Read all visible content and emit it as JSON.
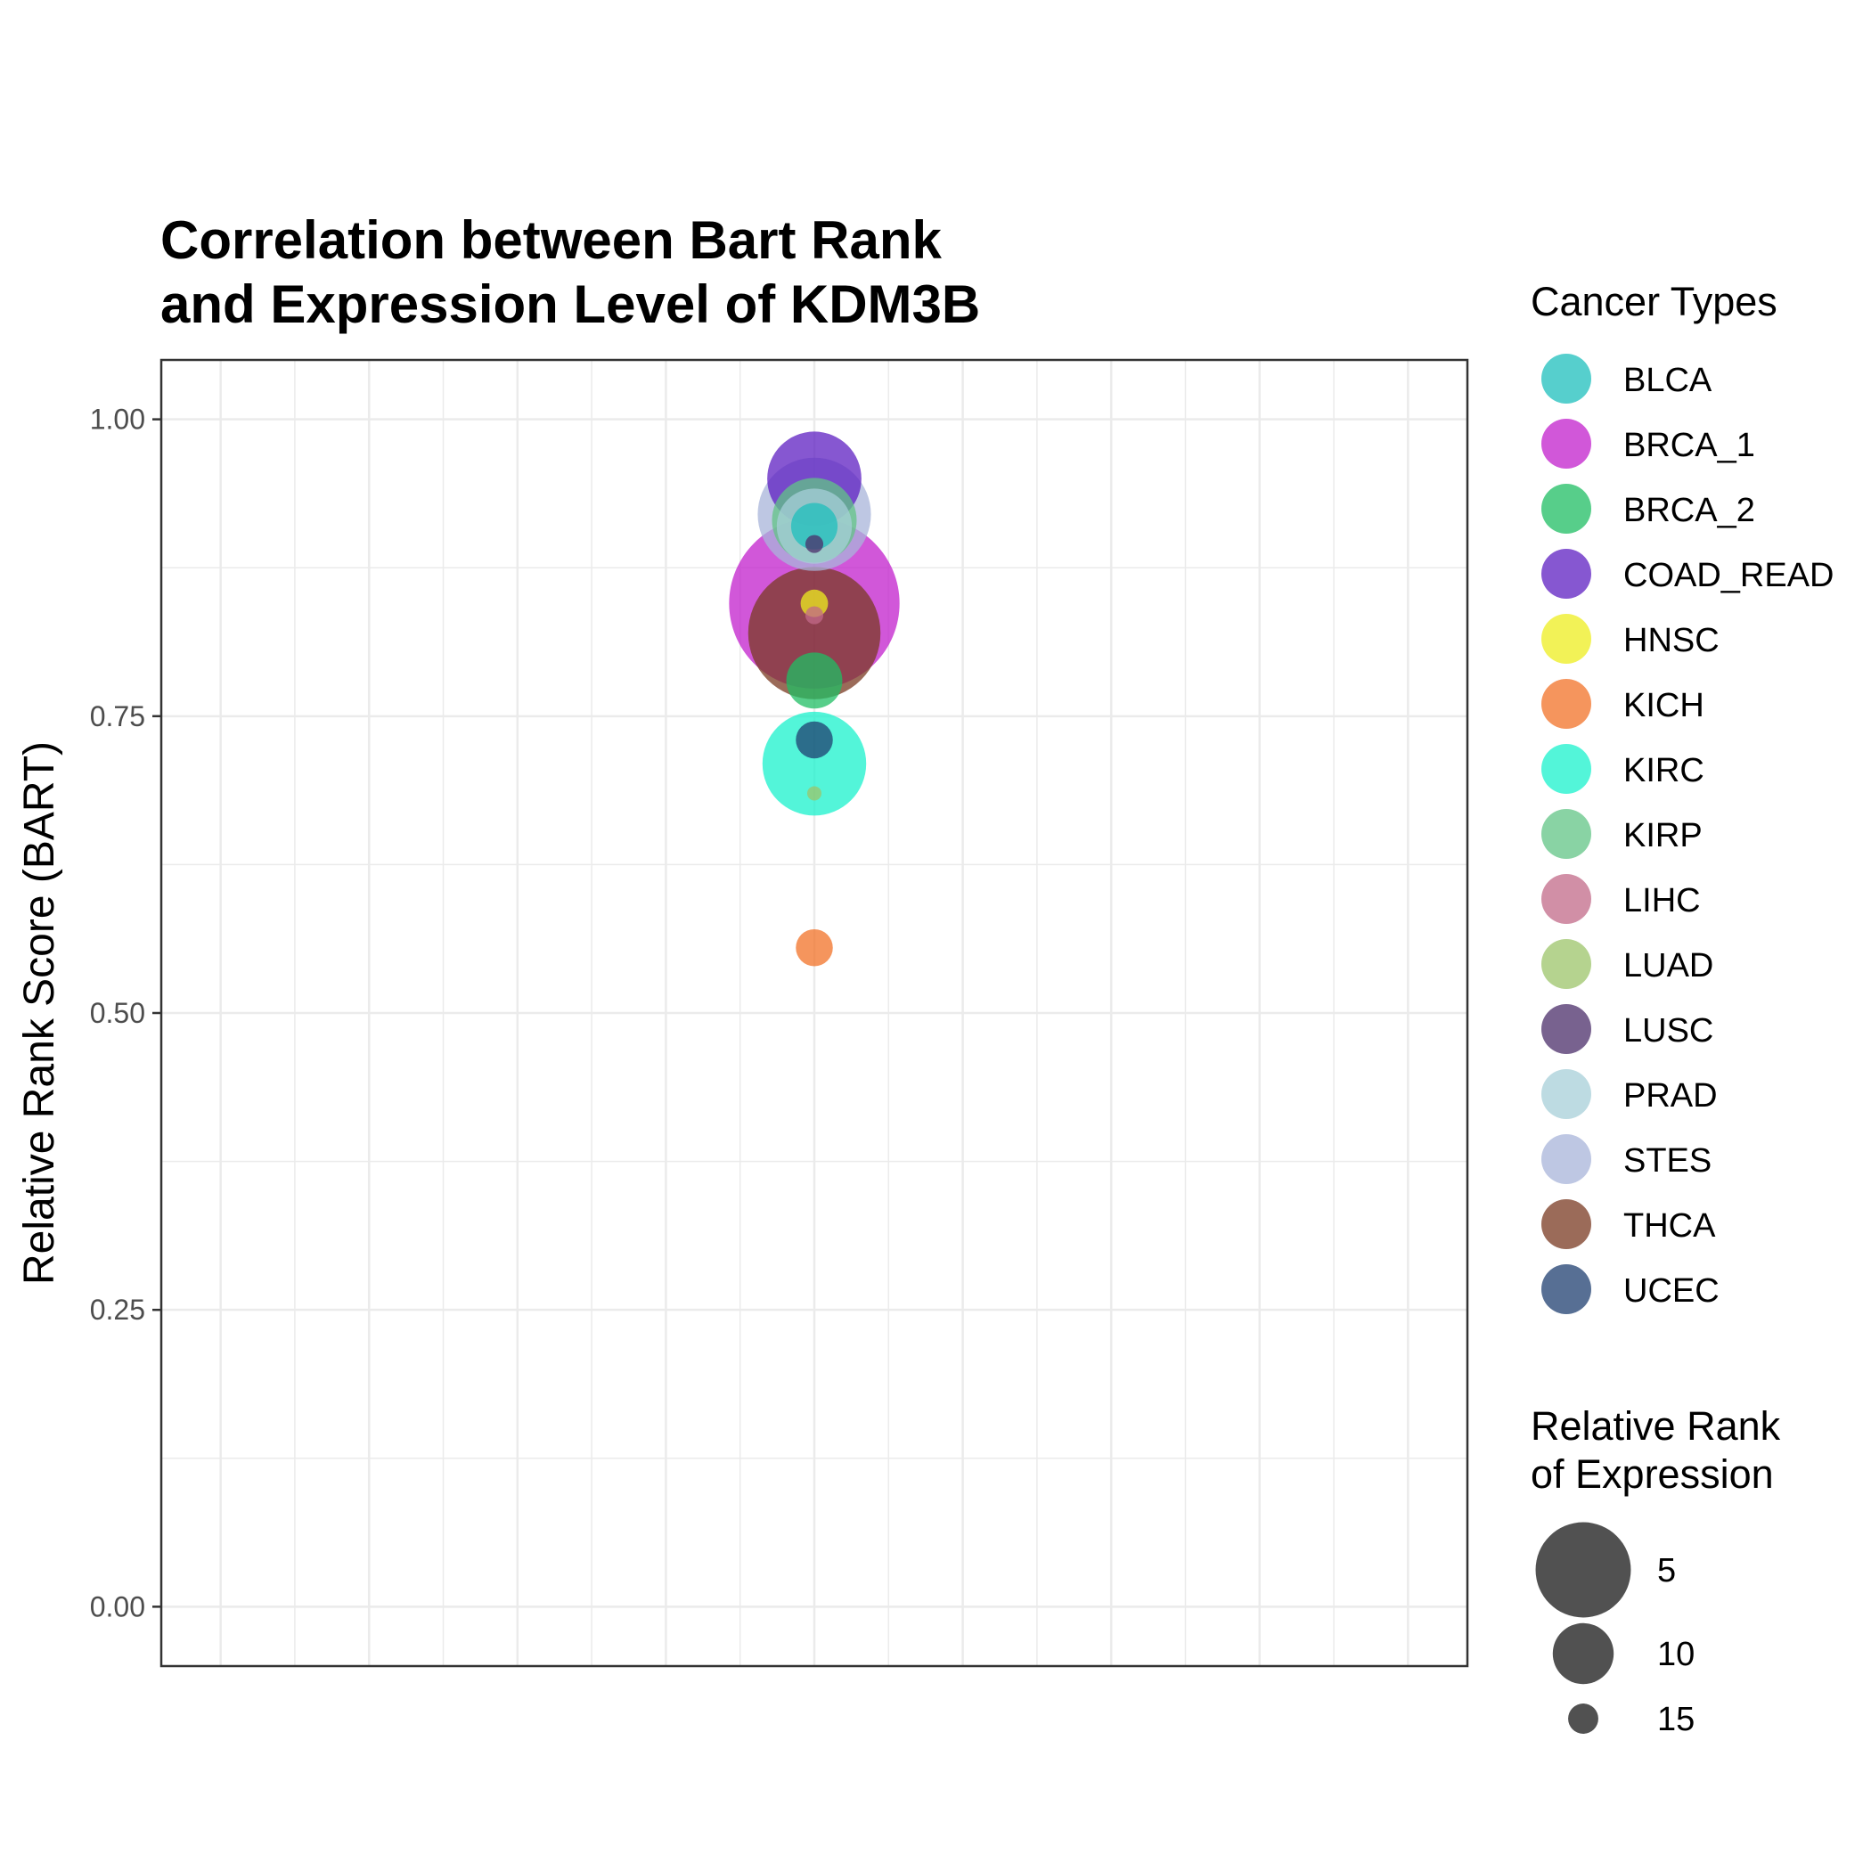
{
  "chart_data": {
    "type": "scatter",
    "title_lines": [
      "Correlation between Bart Rank",
      "and Expression Level of KDM3B"
    ],
    "xlabel": "",
    "ylabel": "Relative Rank Score (BART)",
    "ylim": [
      -0.05,
      1.05
    ],
    "yticks": [
      {
        "value": 0.0,
        "label": "0.00"
      },
      {
        "value": 0.25,
        "label": "0.25"
      },
      {
        "value": 0.5,
        "label": "0.50"
      },
      {
        "value": 0.75,
        "label": "0.75"
      },
      {
        "value": 1.0,
        "label": "1.00"
      }
    ],
    "grid": true,
    "legend_color_title": "Cancer Types",
    "legend_size_title_lines": [
      "Relative Rank",
      "of Expression"
    ],
    "size_legend": [
      {
        "value": 5,
        "label": "5"
      },
      {
        "value": 10,
        "label": "10"
      },
      {
        "value": 15,
        "label": "15"
      }
    ],
    "series": [
      {
        "name": "BLCA",
        "color": "#1ebfbc",
        "y": 0.91,
        "rank": 14
      },
      {
        "name": "BRCA_1",
        "color": "#c21fcc",
        "y": 0.845,
        "rank": 1
      },
      {
        "name": "BRCA_2",
        "color": "#1fbe63",
        "y": 0.78,
        "rank": 13
      },
      {
        "name": "COAD_READ",
        "color": "#5e1fc2",
        "y": 0.95,
        "rank": 9
      },
      {
        "name": "HNSC",
        "color": "#eded1f",
        "y": 0.845,
        "rank": 16
      },
      {
        "name": "KICH",
        "color": "#f27127",
        "y": 0.555,
        "rank": 15
      },
      {
        "name": "KIRC",
        "color": "#19f2cc",
        "y": 0.71,
        "rank": 8
      },
      {
        "name": "KIRP",
        "color": "#62c486",
        "y": 0.915,
        "rank": 10
      },
      {
        "name": "LIHC",
        "color": "#c26a88",
        "y": 0.835,
        "rank": 17
      },
      {
        "name": "LUAD",
        "color": "#9cc46a",
        "y": 0.685,
        "rank": 18
      },
      {
        "name": "LUSC",
        "color": "#4b2e69",
        "y": 0.895,
        "rank": 17
      },
      {
        "name": "PRAD",
        "color": "#a7cfd8",
        "y": 0.91,
        "rank": 11
      },
      {
        "name": "STES",
        "color": "#a8b4da",
        "y": 0.92,
        "rank": 7
      },
      {
        "name": "THCA",
        "color": "#7a3a22",
        "y": 0.82,
        "rank": 5
      },
      {
        "name": "UCEC",
        "color": "#1f3f70",
        "y": 0.73,
        "rank": 15
      }
    ]
  }
}
